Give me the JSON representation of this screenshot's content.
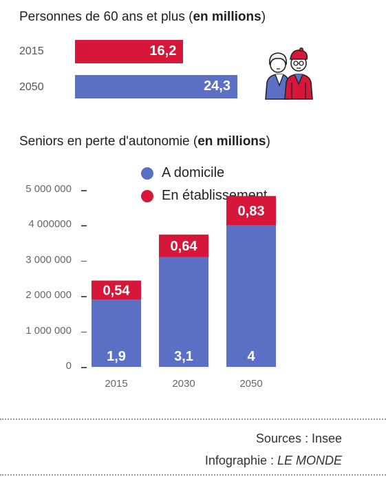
{
  "top_chart": {
    "title_prefix": "Personnes de 60 ans et plus (",
    "title_bold": "en millions",
    "title_suffix": ")"
  },
  "bottom_chart": {
    "title_prefix": "Seniors en perte d'autonomie (",
    "title_bold": "en millions",
    "title_suffix": ")"
  },
  "chart_data": [
    {
      "type": "bar",
      "orientation": "horizontal",
      "categories": [
        "2015",
        "2050"
      ],
      "values": [
        16.2,
        24.3
      ],
      "value_labels": [
        "16,2",
        "24,3"
      ],
      "colors": [
        "#d7173a",
        "#5b70c4"
      ]
    },
    {
      "type": "bar",
      "stacked": true,
      "categories": [
        "2015",
        "2030",
        "2050"
      ],
      "series": [
        {
          "name": "A domicile",
          "values": [
            1.9,
            3.1,
            4
          ],
          "labels": [
            "1,9",
            "3,1",
            "4"
          ],
          "color": "#5b70c4"
        },
        {
          "name": "En établissement",
          "values": [
            0.54,
            0.64,
            0.83
          ],
          "labels": [
            "0,54",
            "0,64",
            "0,83"
          ],
          "color": "#d7173a"
        }
      ],
      "yticks": [
        0,
        1000000,
        2000000,
        3000000,
        4000000,
        5000000
      ],
      "ytick_labels": [
        "0",
        "1 000 000",
        "2 000 000",
        "3 000 000",
        "4 000000",
        "5 000 000"
      ],
      "ylim": [
        0,
        5000000
      ],
      "legend_position": "top"
    }
  ],
  "footer": {
    "sources": "Sources : Insee",
    "infographie_prefix": "Infographie : ",
    "infographie_brand": "LE MONDE"
  },
  "icon": "seniors-couple-icon"
}
